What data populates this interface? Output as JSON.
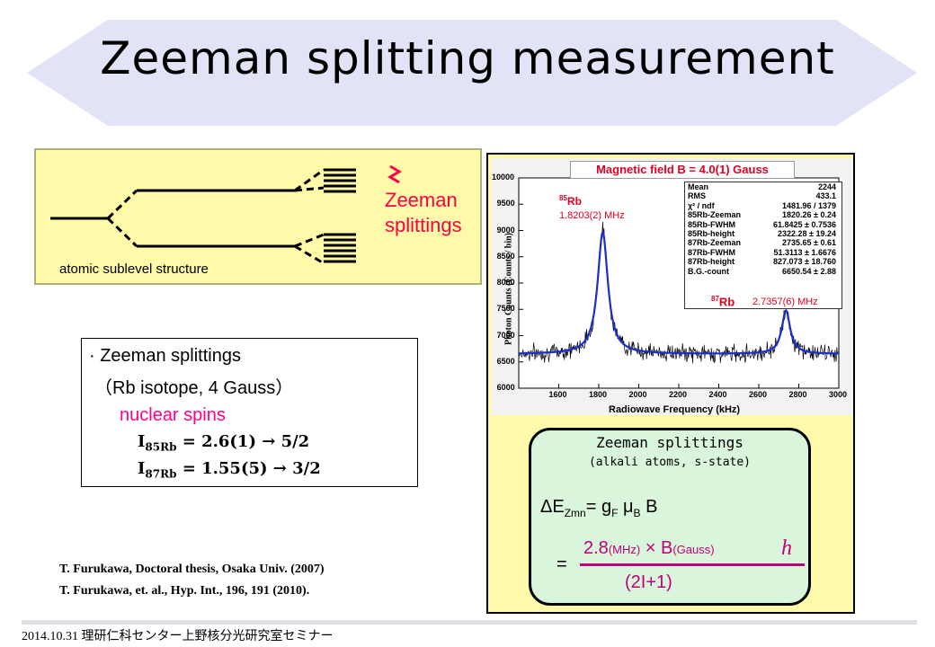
{
  "title": "Zeeman splitting measurement",
  "sublevel": {
    "zeeman_label_line1": "Zeeman",
    "zeeman_label_line2": "splittings",
    "caption": "atomic sublevel structure"
  },
  "info": {
    "bullet_line1": "· Zeeman splittings",
    "bullet_line2": "（Rb isotope, 4 Gauss）",
    "nuclear_spins": "nuclear spins",
    "spin85_prefix": "I",
    "spin85_sub": "85Rb",
    "spin85_value": " = 2.6(1) → 5/2",
    "spin87_prefix": "I",
    "spin87_sub": "87Rb",
    "spin87_value": " = 1.55(5) → 3/2"
  },
  "references": [
    "T. Furukawa, Doctoral thesis, Osaka Univ. (2007)",
    "T. Furukawa, et. al., Hyp. Int., 196, 191 (2010)."
  ],
  "footer": "2014.10.31 理研仁科センター上野核分光研究室セミナー",
  "chart_data": {
    "type": "line",
    "title": "Magnetic field B = 4.0(1) Gauss",
    "xlabel": "Radiowave Frequency (kHz)",
    "ylabel": "Photon Counts (Counts / bin)",
    "xlim": [
      1400,
      3000
    ],
    "ylim": [
      6000,
      10000
    ],
    "x_ticks": [
      "1600",
      "1800",
      "2000",
      "2200",
      "2400",
      "2600",
      "2800",
      "3000"
    ],
    "y_ticks": [
      "6000",
      "6500",
      "7000",
      "7500",
      "8000",
      "8500",
      "9000",
      "9500",
      "10000"
    ],
    "baseline": 6650,
    "peaks": [
      {
        "center": 1820,
        "height": 2322,
        "fwhm": 62
      },
      {
        "center": 2736,
        "height": 827,
        "fwhm": 51
      }
    ],
    "peak85_label_mass": "85",
    "peak85_label_elem": "Rb",
    "peak85_freq": "1.8203(2) MHz",
    "peak87_label_mass": "87",
    "peak87_label_elem": "Rb",
    "peak87_freq": "2.7357(6) MHz",
    "stats": [
      [
        "Mean",
        "2244"
      ],
      [
        "RMS",
        "433.1"
      ],
      [
        "χ² / ndf",
        "1481.96 / 1379"
      ],
      [
        "85Rb-Zeeman",
        "1820.26 ± 0.24"
      ],
      [
        "85Rb-FWHM",
        "61.8425 ± 0.7536"
      ],
      [
        "85Rb-height",
        "2322.28 ± 19.24"
      ],
      [
        "87Rb-Zeeman",
        "2735.65 ± 0.61"
      ],
      [
        "87Rb-FWHM",
        "51.3113 ± 1.6676"
      ],
      [
        "87Rb-height",
        "827.073 ± 18.760"
      ],
      [
        "B.G.-count",
        "6650.54 ± 2.88"
      ]
    ],
    "colors": {
      "data": "#000000",
      "fit": "#1a2fd0",
      "labels": "#e00022"
    }
  },
  "formula": {
    "title": "Zeeman splittings",
    "subtitle": "(alkali atoms, s-state)",
    "eq_delta": "ΔE",
    "eq_delta_sub": "Zmn",
    "eq_rhs1": "= g",
    "eq_gF_sub": "F",
    "eq_mu": " μ",
    "eq_muB_sub": "B",
    "eq_B": " B",
    "num_main": "2.8",
    "num_unit1": "(MHz)",
    "num_times": " × B",
    "num_unit2": "(Gauss)",
    "h_symbol": "h",
    "equals": "=",
    "denominator": "(2I+1)"
  },
  "colors": {
    "banner": "#e2e3f6",
    "panel_yellow": "#fffaa9",
    "formula_green": "#d9f5dc",
    "accent_red": "#ff0044",
    "accent_magenta": "#c0007a"
  }
}
